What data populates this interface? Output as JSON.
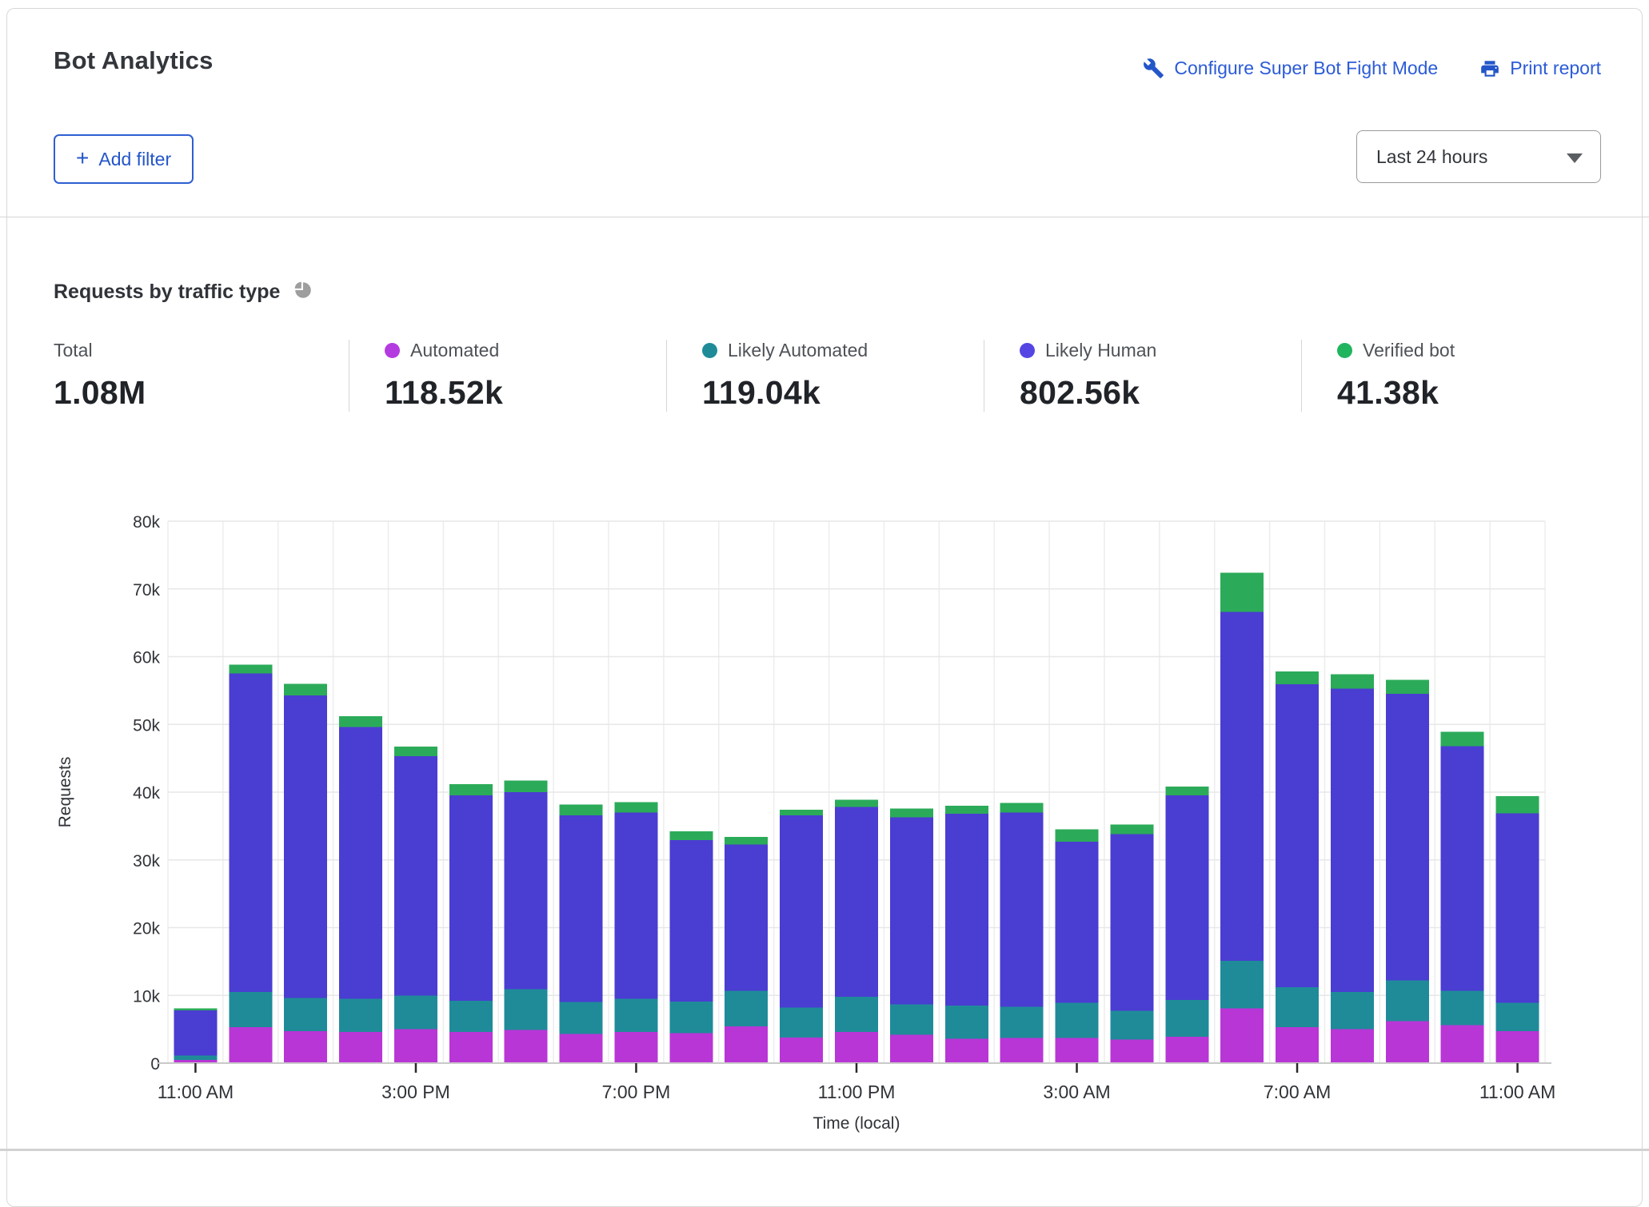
{
  "header": {
    "title": "Bot Analytics",
    "configure_link": "Configure Super Bot Fight Mode",
    "print_link": "Print report",
    "add_filter_label": "Add filter",
    "add_filter_plus": "+",
    "time_range_value": "Last 24 hours"
  },
  "section": {
    "title": "Requests by traffic type"
  },
  "stats": [
    {
      "label": "Total",
      "value": "1.08M",
      "dot_color": null
    },
    {
      "label": "Automated",
      "value": "118.52k",
      "dot_color": "#b43be0"
    },
    {
      "label": "Likely Automated",
      "value": "119.04k",
      "dot_color": "#1f8b99"
    },
    {
      "label": "Likely Human",
      "value": "802.56k",
      "dot_color": "#5546e4"
    },
    {
      "label": "Verified bot",
      "value": "41.38k",
      "dot_color": "#21b45f"
    }
  ],
  "colors": {
    "link_blue": "#2b5bd7",
    "gridline": "#e7e7e7",
    "axis_line": "#c9c9c9",
    "axis_text": "#303338",
    "pie_icon_gray": "#9e9e9e"
  },
  "chart_data": {
    "type": "bar",
    "stacked": true,
    "title": "Requests by traffic type",
    "xlabel": "Time (local)",
    "ylabel": "Requests",
    "unit": "thousands of requests (k)",
    "ylim": [
      0,
      80
    ],
    "grid": true,
    "y_tick_labels": [
      "0",
      "10k",
      "20k",
      "30k",
      "40k",
      "50k",
      "60k",
      "70k",
      "80k"
    ],
    "x_tick_indices": [
      0,
      4,
      8,
      12,
      16,
      20,
      24
    ],
    "x_tick_labels": [
      "11:00 AM",
      "3:00 PM",
      "7:00 PM",
      "11:00 PM",
      "3:00 AM",
      "7:00 AM",
      "11:00 AM"
    ],
    "categories": [
      "11:00 AM",
      "12:00 PM",
      "1:00 PM",
      "2:00 PM",
      "3:00 PM",
      "4:00 PM",
      "5:00 PM",
      "6:00 PM",
      "7:00 PM",
      "8:00 PM",
      "9:00 PM",
      "10:00 PM",
      "11:00 PM",
      "12:00 AM",
      "1:00 AM",
      "2:00 AM",
      "3:00 AM",
      "4:00 AM",
      "5:00 AM",
      "6:00 AM",
      "7:00 AM",
      "8:00 AM",
      "9:00 AM",
      "10:00 AM",
      "11:00 AM"
    ],
    "series": [
      {
        "name": "Automated",
        "color": "#b836d6",
        "values": [
          0.5,
          5.3,
          4.7,
          4.6,
          5.0,
          4.6,
          4.9,
          4.3,
          4.6,
          4.4,
          5.4,
          3.8,
          4.6,
          4.2,
          3.6,
          3.7,
          3.7,
          3.5,
          3.9,
          8.1,
          5.3,
          5.0,
          6.2,
          5.6,
          4.7
        ]
      },
      {
        "name": "Likely Automated",
        "color": "#1f8b99",
        "values": [
          0.6,
          5.2,
          4.9,
          4.9,
          5.0,
          4.6,
          6.0,
          4.7,
          4.9,
          4.7,
          5.3,
          4.4,
          5.2,
          4.5,
          4.9,
          4.6,
          5.2,
          4.2,
          5.4,
          7.0,
          5.9,
          5.5,
          6.0,
          5.1,
          4.2
        ]
      },
      {
        "name": "Likely Human",
        "color": "#4a3dd1",
        "values": [
          6.7,
          47.0,
          44.7,
          40.1,
          35.3,
          30.3,
          29.1,
          27.6,
          27.5,
          23.8,
          21.6,
          28.4,
          28.0,
          27.6,
          28.3,
          28.7,
          23.8,
          26.1,
          30.2,
          51.5,
          44.7,
          44.8,
          42.3,
          36.1,
          28.0
        ]
      },
      {
        "name": "Verified bot",
        "color": "#2bab59",
        "values": [
          0.3,
          1.3,
          1.7,
          1.6,
          1.4,
          1.7,
          1.7,
          1.6,
          1.5,
          1.3,
          1.1,
          0.8,
          1.1,
          1.3,
          1.2,
          1.4,
          1.8,
          1.4,
          1.3,
          5.8,
          1.9,
          2.1,
          2.1,
          2.1,
          2.5
        ]
      }
    ],
    "legend_position": "top stats row"
  }
}
